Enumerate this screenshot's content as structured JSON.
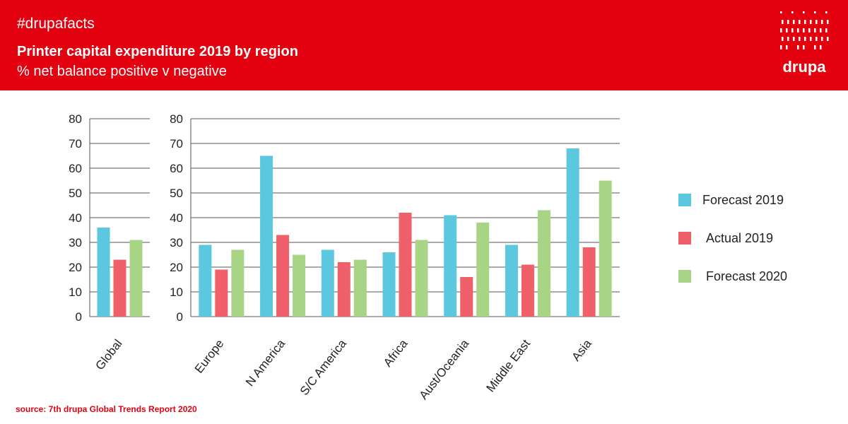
{
  "header": {
    "hashtag": "#drupafacts",
    "title": "Printer capital expenditure 2019 by region",
    "subtitle": "% net balance positive v negative",
    "logo_text": "drupa",
    "background_color": "#e3000f"
  },
  "source": "source: 7th drupa Global Trends Report 2020",
  "chart_data": [
    {
      "type": "bar",
      "categories": [
        "Global"
      ],
      "series": [
        {
          "name": "Forecast 2019",
          "color": "#5bc8e0",
          "values": [
            36
          ]
        },
        {
          "name": "Actual 2019",
          "color": "#f0606b",
          "values": [
            23
          ]
        },
        {
          "name": "Forecast 2020",
          "color": "#a8d485",
          "values": [
            31
          ]
        }
      ],
      "ylim": [
        0,
        80
      ],
      "yticks": [
        0,
        10,
        20,
        30,
        40,
        50,
        60,
        70,
        80
      ],
      "grid": true
    },
    {
      "type": "bar",
      "categories": [
        "Europe",
        "N America",
        "S/C America",
        "Africa",
        "Aust/Oceania",
        "Middle East",
        "Asia"
      ],
      "series": [
        {
          "name": "Forecast 2019",
          "color": "#5bc8e0",
          "values": [
            29,
            65,
            27,
            26,
            41,
            29,
            68
          ]
        },
        {
          "name": "Actual 2019",
          "color": "#f0606b",
          "values": [
            19,
            33,
            22,
            42,
            16,
            21,
            28
          ]
        },
        {
          "name": "Forecast 2020",
          "color": "#a8d485",
          "values": [
            27,
            25,
            23,
            31,
            38,
            43,
            55
          ]
        }
      ],
      "ylim": [
        0,
        80
      ],
      "yticks": [
        0,
        10,
        20,
        30,
        40,
        50,
        60,
        70,
        80
      ],
      "grid": true,
      "legend_position": "right"
    }
  ]
}
